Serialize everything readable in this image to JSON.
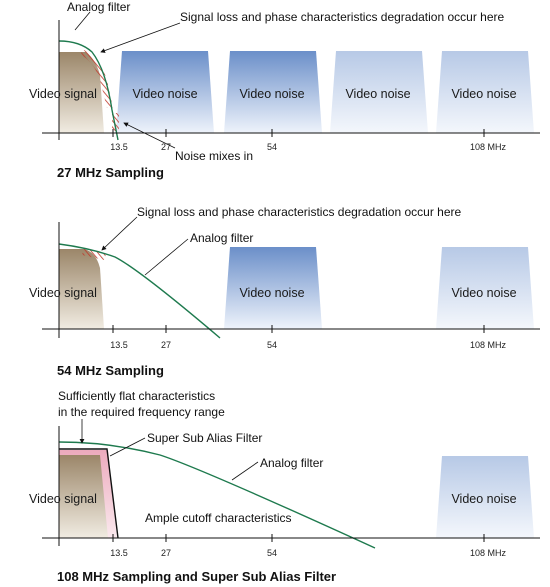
{
  "colors": {
    "noise_top": "#6b8fc9",
    "noise_bottom": "#eef3fb",
    "signal_top": "#9b8669",
    "signal_bottom": "#f1ece2",
    "filter_curve": "#1e7a4e",
    "hatch": "#c0392b",
    "ssaf_fill": "#f2c4d0"
  },
  "icons": {
    "hatch": "red-hatch-marks",
    "arrow": "leader-arrow"
  },
  "panel1": {
    "label_analog_filter": "Analog filter",
    "label_signal_loss": "Signal loss and phase characteristics degradation occur here",
    "video_signal": "Video signal",
    "noise_labels": [
      "Video noise",
      "Video noise",
      "Video noise",
      "Video noise"
    ],
    "noise_mixes": "Noise mixes in",
    "ticks": [
      "13.5",
      "27",
      "54",
      "108 MHz"
    ],
    "title": "27 MHz Sampling"
  },
  "panel2": {
    "label_signal_loss": "Signal loss and phase characteristics degradation occur here",
    "label_analog_filter": "Analog filter",
    "video_signal": "Video signal",
    "noise_labels": [
      "Video noise",
      "Video noise"
    ],
    "ticks": [
      "13.5",
      "27",
      "54",
      "108 MHz"
    ],
    "title": "54 MHz Sampling"
  },
  "panel3": {
    "flat_line1": "Sufficiently flat characteristics",
    "flat_line2": "in the required frequency range",
    "ssaf_label": "Super Sub Alias Filter",
    "label_analog_filter": "Analog filter",
    "video_signal": "Video signal",
    "noise_label": "Video noise",
    "cutoff_label": "Ample cutoff characteristics",
    "ticks": [
      "13.5",
      "27",
      "54",
      "108 MHz"
    ],
    "title": "108 MHz Sampling and Super Sub Alias Filter"
  }
}
